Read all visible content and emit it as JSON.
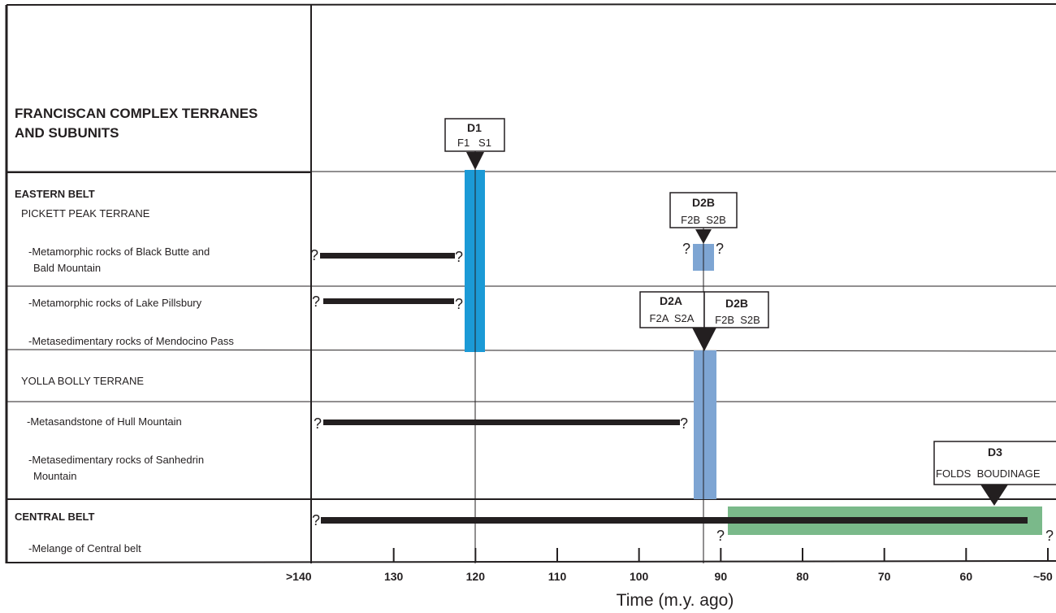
{
  "header": {
    "title_line1": "FRANCISCAN COMPLEX TERRANES",
    "title_line2": "AND SUBUNITS"
  },
  "rows": [
    {
      "id": "eastern-belt",
      "label": "EASTERN BELT",
      "bold": true
    },
    {
      "id": "pickett-peak",
      "label": "PICKETT PEAK TERRANE",
      "bold": false
    },
    {
      "id": "black-butte",
      "label_line1": "-Metamorphic rocks of Black Butte and",
      "label_line2": "Bald Mountain",
      "bold": false
    },
    {
      "id": "lake-pillsbury",
      "label": "-Metamorphic rocks of Lake Pillsbury",
      "bold": false
    },
    {
      "id": "mendocino-pass",
      "label": "-Metasedimentary rocks of Mendocino Pass",
      "bold": false
    },
    {
      "id": "yolla-bolly",
      "label": "YOLLA BOLLY TERRANE",
      "bold": false
    },
    {
      "id": "hull-mountain",
      "label": "-Metasandstone of Hull Mountain",
      "bold": false
    },
    {
      "id": "sanhedrin",
      "label_line1": "-Metasedimentary rocks of Sanhedrin",
      "label_line2": "Mountain",
      "bold": false
    },
    {
      "id": "central-belt",
      "label": "CENTRAL BELT",
      "bold": true
    },
    {
      "id": "melange",
      "label": "-Melange of Central belt",
      "bold": false
    }
  ],
  "axis": {
    "title": "Time (m.y. ago)",
    "ticks": [
      {
        "value": 140,
        "label": ">140"
      },
      {
        "value": 130,
        "label": "130"
      },
      {
        "value": 120,
        "label": "120"
      },
      {
        "value": 110,
        "label": "110"
      },
      {
        "value": 100,
        "label": "100"
      },
      {
        "value": 90,
        "label": "90"
      },
      {
        "value": 80,
        "label": "80"
      },
      {
        "value": 70,
        "label": "70"
      },
      {
        "value": 60,
        "label": "60"
      },
      {
        "value": 50,
        "label": "~50"
      }
    ],
    "range_ma": [
      140,
      50
    ]
  },
  "events": [
    {
      "id": "D1",
      "title": "D1",
      "subtitle": "F1   S1",
      "age_ma": 120,
      "color": "#1b9ad6"
    },
    {
      "id": "D2B-upper",
      "title": "D2B",
      "subtitle": "F2B  S2B",
      "age_ma": 92,
      "color": "#7ea5d3"
    },
    {
      "id": "D2A",
      "title": "D2A",
      "subtitle": "F2A  S2A",
      "age_ma": 92,
      "color": "#7ea5d3"
    },
    {
      "id": "D2B-lower",
      "title": "D2B",
      "subtitle": "F2B  S2B",
      "age_ma": 92,
      "color": "#7ea5d3"
    },
    {
      "id": "D3",
      "title": "D3",
      "subtitle": "FOLDS  BOUDINAGE",
      "age_ma": 56,
      "color": "#7ab98a"
    }
  ],
  "age_ranges": [
    {
      "unit": "black-butte",
      "from_ma": 140,
      "to_ma": 123
    },
    {
      "unit": "lake-pillsbury",
      "from_ma": 140,
      "to_ma": 123
    },
    {
      "unit": "hull-mountain",
      "from_ma": 140,
      "to_ma": 95
    },
    {
      "unit": "melange",
      "from_ma": 140,
      "to_ma": 52
    }
  ],
  "deformation_bands": [
    {
      "event": "D1",
      "from_ma": 121.5,
      "to_ma": 119,
      "color": "#1b9ad6"
    },
    {
      "event": "D2B",
      "from_ma": 93.3,
      "to_ma": 90.7,
      "color": "#7ea5d3"
    },
    {
      "event": "D2A-D2B",
      "from_ma": 93.2,
      "to_ma": 90.4,
      "color": "#7ea5d3"
    },
    {
      "event": "D3",
      "from_ma": 89,
      "to_ma": 50.2,
      "color": "#7ab98a"
    }
  ],
  "uncertainty_mark": "?"
}
